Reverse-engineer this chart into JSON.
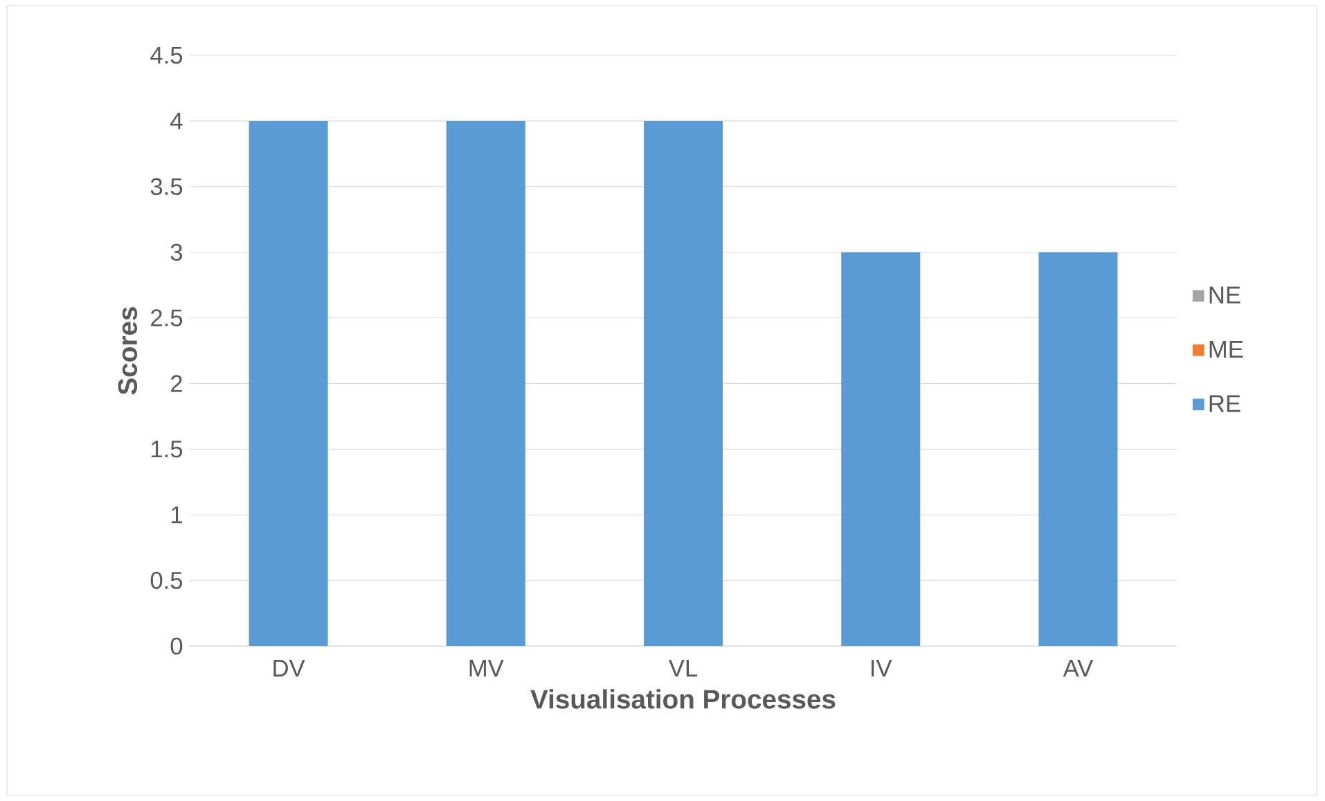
{
  "chart_data": {
    "type": "bar",
    "stacked": true,
    "xlabel": "Visualisation Processes",
    "ylabel": "Scores",
    "categories": [
      "DV",
      "MV",
      "VL",
      "IV",
      "AV"
    ],
    "series": [
      {
        "name": "RE",
        "color": "#5b9bd5",
        "values": [
          4,
          4,
          4,
          3,
          3
        ]
      },
      {
        "name": "ME",
        "color": "#ed7d31",
        "values": [
          0,
          0,
          0,
          0,
          0
        ]
      },
      {
        "name": "NE",
        "color": "#a5a5a5",
        "values": [
          0,
          0,
          0,
          0,
          0
        ]
      }
    ],
    "ylim": [
      0,
      4.5
    ],
    "yticks": [
      0,
      0.5,
      1,
      1.5,
      2,
      2.5,
      3,
      3.5,
      4,
      4.5
    ],
    "grid": "y",
    "legend": "right"
  }
}
